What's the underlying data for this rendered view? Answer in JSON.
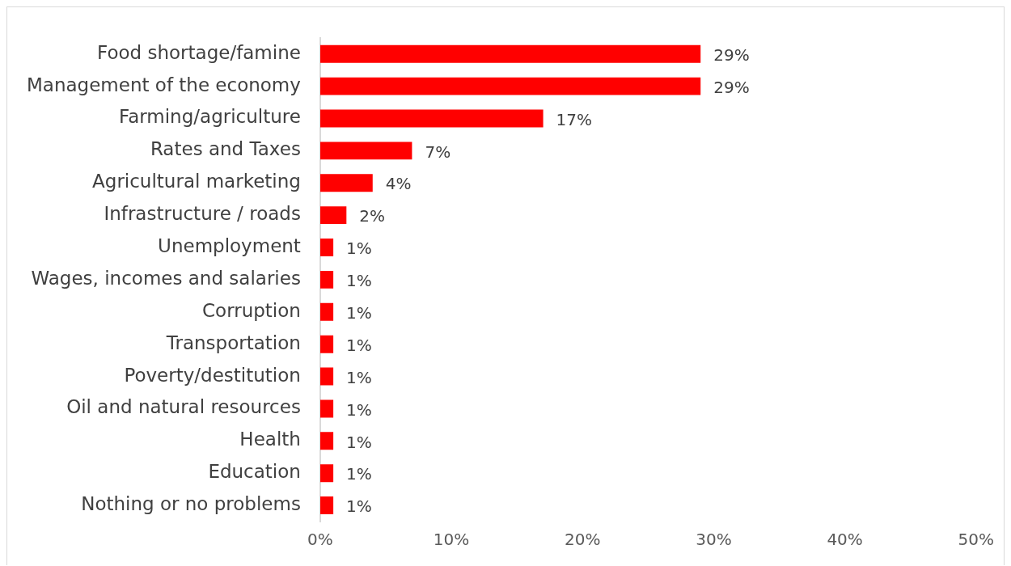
{
  "chart_data": {
    "type": "bar",
    "orientation": "horizontal",
    "categories": [
      "Food shortage/famine",
      "Management of the economy",
      "Farming/agriculture",
      "Rates and Taxes",
      "Agricultural marketing",
      "Infrastructure / roads",
      "Unemployment",
      "Wages, incomes and salaries",
      "Corruption",
      "Transportation",
      "Poverty/destitution",
      "Oil and natural resources",
      "Health",
      "Education",
      "Nothing or no problems"
    ],
    "values": [
      29,
      29,
      17,
      7,
      4,
      2,
      1,
      1,
      1,
      1,
      1,
      1,
      1,
      1,
      1
    ],
    "value_labels": [
      "29%",
      "29%",
      "17%",
      "7%",
      "4%",
      "2%",
      "1%",
      "1%",
      "1%",
      "1%",
      "1%",
      "1%",
      "1%",
      "1%",
      "1%"
    ],
    "color": "#ff0000",
    "xlim": [
      0,
      50
    ],
    "xticks": [
      {
        "value": 0,
        "label": "0%"
      },
      {
        "value": 10,
        "label": "10%"
      },
      {
        "value": 20,
        "label": "20%"
      },
      {
        "value": 30,
        "label": "30%"
      },
      {
        "value": 40,
        "label": "40%"
      },
      {
        "value": 50,
        "label": "50%"
      }
    ],
    "grid": false,
    "legend": false
  }
}
